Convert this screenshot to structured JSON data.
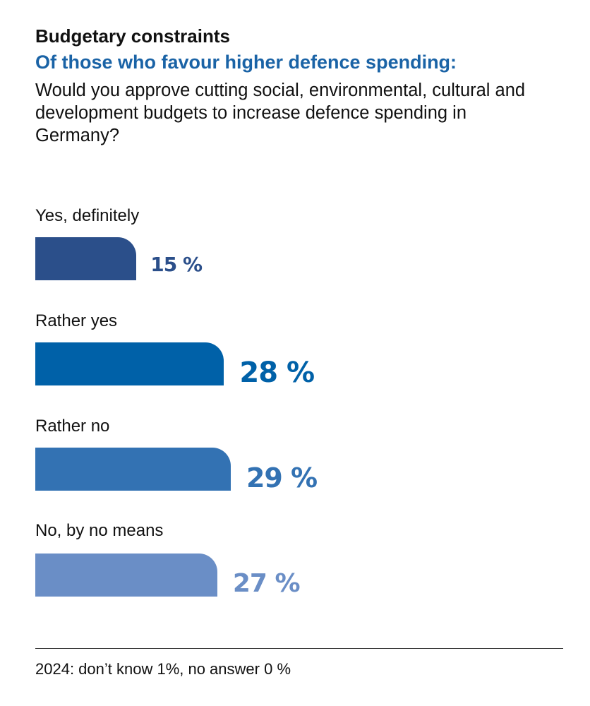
{
  "title": "Budgetary constraints",
  "subtitle": "Of those who favour higher defence spending:",
  "question": "Would you approve cutting social, environmental, cultural and development budgets to increase defence spending in Germany?",
  "chart_data": {
    "type": "bar",
    "orientation": "horizontal",
    "unit": "%",
    "categories": [
      "Yes, definitely",
      "Rather yes",
      "Rather no",
      "No, by no means"
    ],
    "values": [
      15,
      28,
      29,
      27
    ],
    "value_labels": [
      "15 %",
      "28 %",
      "29 %",
      "27 %"
    ],
    "colors": [
      "#2b4f8a",
      "#0061a8",
      "#3372b3",
      "#6a8ec6"
    ],
    "grid": false,
    "axes_visible": false
  },
  "footnote": "2024: don’t know 1%, no answer 0 %"
}
